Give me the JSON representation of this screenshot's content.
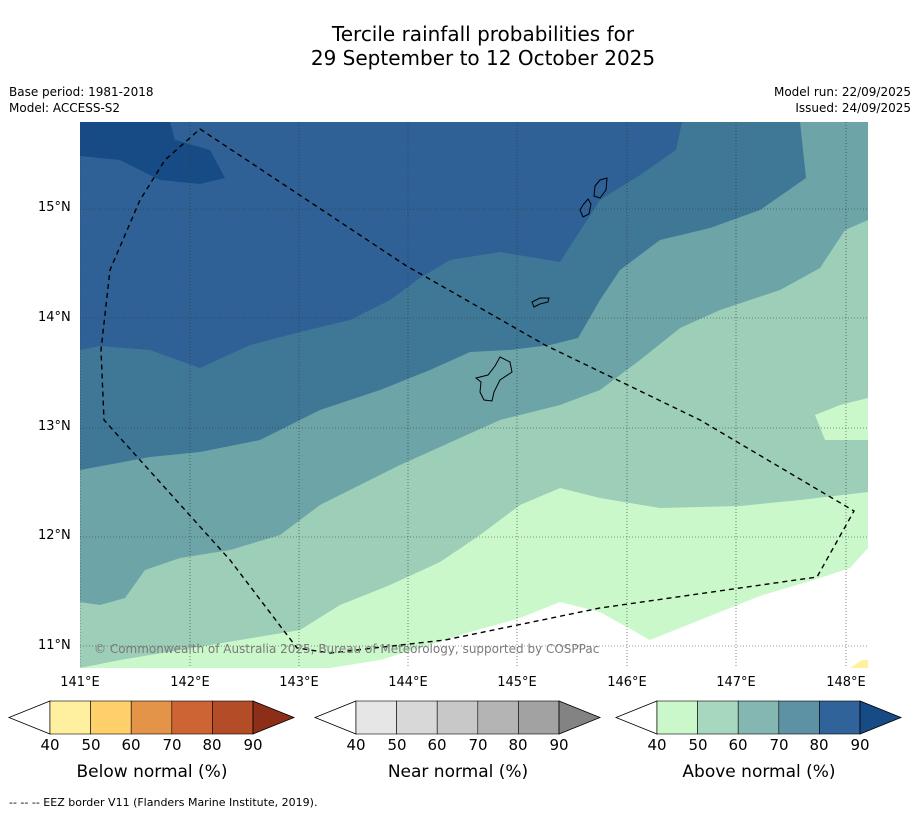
{
  "title": {
    "line1": "Tercile rainfall probabilities for",
    "line2": "29 September to 12 October 2025"
  },
  "meta": {
    "base_period": "Base period: 1981-2018",
    "model": "Model: ACCESS-S2",
    "model_run": "Model run: 22/09/2025",
    "issued": "Issued: 24/09/2025"
  },
  "axes": {
    "lat_labels": [
      "15°N",
      "14°N",
      "13°N",
      "12°N",
      "11°N"
    ],
    "lon_labels": [
      "141°E",
      "142°E",
      "143°E",
      "144°E",
      "145°E",
      "146°E",
      "147°E",
      "148°E"
    ]
  },
  "copyright": "© Commonwealth of Australia 2025, Bureau of Meteorology, supported by COSPPac",
  "colorbars": [
    {
      "title": "Below normal (%)",
      "ticks": [
        "40",
        "50",
        "60",
        "70",
        "80",
        "90"
      ],
      "colors": [
        "#ffffff",
        "#fff0a0",
        "#fed06a",
        "#e39449",
        "#cc6533",
        "#b44c27",
        "#8d2e18"
      ]
    },
    {
      "title": "Near normal (%)",
      "ticks": [
        "40",
        "50",
        "60",
        "70",
        "80",
        "90"
      ],
      "colors": [
        "#ffffff",
        "#e6e6e6",
        "#d8d8d8",
        "#c8c8c8",
        "#b4b4b4",
        "#a2a2a2",
        "#838383"
      ]
    },
    {
      "title": "Above normal (%)",
      "ticks": [
        "40",
        "50",
        "60",
        "70",
        "80",
        "90"
      ],
      "colors": [
        "#ffffff",
        "#caf8ca",
        "#a7d7be",
        "#84b7b1",
        "#5d92a4",
        "#30639a",
        "#174b85"
      ]
    }
  ],
  "map_colors": {
    "above_40": "#caf8ca",
    "above_50": "#9cceb8",
    "above_60": "#6ca4a7",
    "above_70": "#3f7796",
    "above_80": "#2f6196",
    "above_90": "#174b85",
    "below_40": "#fff0a0"
  },
  "footnote": "--  --  -- EEZ border V11 (Flanders Marine Institute, 2019)."
}
